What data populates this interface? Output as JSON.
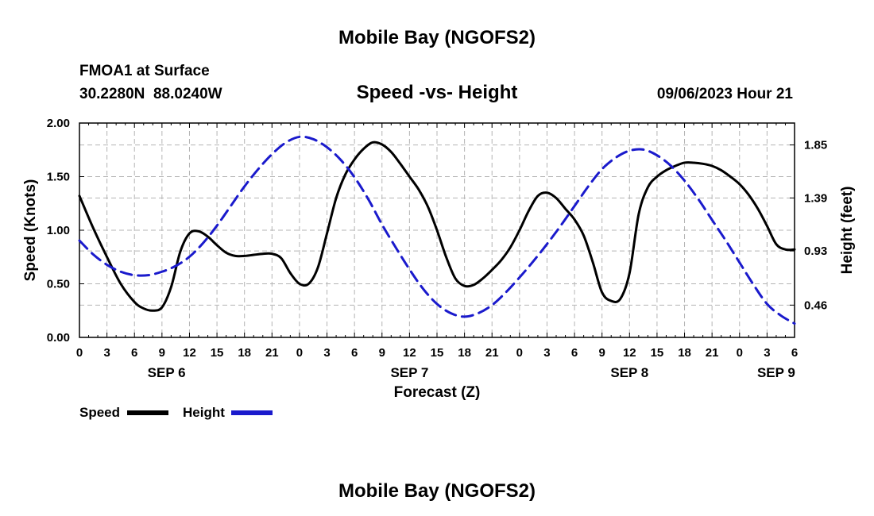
{
  "header": {
    "title": "Mobile Bay (NGOFS2)",
    "station_name": "FMOA1 at Surface",
    "station_coords": "30.2280N  88.0240W",
    "subtitle": "Speed -vs- Height",
    "timestamp": "09/06/2023 Hour 21"
  },
  "footer": {
    "title": "Mobile Bay (NGOFS2)"
  },
  "legend": {
    "items": [
      {
        "label": "Speed",
        "color": "#000000",
        "style": "solid"
      },
      {
        "label": "Height",
        "color": "#1a1acc",
        "style": "dashed"
      }
    ]
  },
  "chart_data": {
    "type": "line",
    "title": "Speed -vs- Height",
    "xlabel": "Forecast (Z)",
    "ylabel": "Speed (Knots)",
    "y2label": "Height (feet)",
    "x_unit": "forecast hour (Z) from Sep 6 00Z",
    "xlim": [
      0,
      78
    ],
    "ylim": [
      0,
      2.0
    ],
    "y2lim": [
      0.18,
      2.04
    ],
    "x_tick_values": [
      0,
      3,
      6,
      9,
      12,
      15,
      18,
      21,
      24,
      27,
      30,
      33,
      36,
      39,
      42,
      45,
      48,
      51,
      54,
      57,
      60,
      63,
      66,
      69,
      72,
      75,
      78
    ],
    "x_tick_labels": [
      "0",
      "3",
      "6",
      "9",
      "12",
      "15",
      "18",
      "21",
      "0",
      "3",
      "6",
      "9",
      "12",
      "15",
      "18",
      "21",
      "0",
      "3",
      "6",
      "9",
      "12",
      "15",
      "18",
      "21",
      "0",
      "3",
      "6"
    ],
    "y_ticks": [
      0.0,
      0.5,
      1.0,
      1.5,
      2.0
    ],
    "y_tick_labels": [
      "0.00",
      "0.50",
      "1.00",
      "1.50",
      "2.00"
    ],
    "y2_ticks": [
      0.46,
      0.93,
      1.39,
      1.85
    ],
    "y2_tick_labels": [
      "0.46",
      "0.93",
      "1.39",
      "1.85"
    ],
    "date_labels": [
      {
        "label": "SEP 6",
        "x": 9.5
      },
      {
        "label": "SEP 7",
        "x": 36
      },
      {
        "label": "SEP 8",
        "x": 60
      },
      {
        "label": "SEP 9",
        "x": 76
      }
    ],
    "grid": true,
    "legend_position": "bottom-left",
    "series": [
      {
        "name": "Speed",
        "axis": "left",
        "color": "#000000",
        "x": [
          0,
          1.5,
          3,
          4.5,
          6,
          7,
          8,
          9,
          10,
          11,
          12,
          13,
          14,
          15,
          16,
          17,
          18,
          19,
          20,
          21,
          22,
          23,
          24,
          25,
          26,
          27,
          28,
          29,
          30,
          31,
          32,
          33,
          34,
          35,
          36,
          37,
          38,
          39,
          40,
          41,
          42,
          43,
          44,
          45,
          46,
          47,
          48,
          49,
          50,
          51,
          52,
          53,
          54,
          55,
          56,
          57,
          58,
          59,
          60,
          61,
          62,
          63,
          64,
          65,
          66,
          67,
          68,
          69,
          70,
          71,
          72,
          73,
          74,
          75,
          76,
          77,
          78
        ],
        "values": [
          1.32,
          1.02,
          0.75,
          0.5,
          0.33,
          0.27,
          0.25,
          0.28,
          0.47,
          0.8,
          0.97,
          0.99,
          0.94,
          0.86,
          0.79,
          0.76,
          0.76,
          0.77,
          0.78,
          0.78,
          0.74,
          0.6,
          0.5,
          0.5,
          0.65,
          0.97,
          1.3,
          1.52,
          1.66,
          1.76,
          1.82,
          1.8,
          1.73,
          1.62,
          1.5,
          1.38,
          1.22,
          1.0,
          0.75,
          0.55,
          0.48,
          0.49,
          0.55,
          0.63,
          0.72,
          0.84,
          1.0,
          1.18,
          1.32,
          1.35,
          1.3,
          1.2,
          1.1,
          0.95,
          0.7,
          0.42,
          0.34,
          0.36,
          0.6,
          1.15,
          1.4,
          1.5,
          1.56,
          1.6,
          1.63,
          1.63,
          1.62,
          1.6,
          1.56,
          1.5,
          1.43,
          1.33,
          1.2,
          1.04,
          0.87,
          0.82,
          0.82
        ]
      },
      {
        "name": "Height",
        "axis": "right",
        "color": "#1a1acc",
        "x": [
          0,
          1.5,
          3,
          4.5,
          6,
          7.5,
          9,
          10.5,
          12,
          13.5,
          15,
          16.5,
          18,
          19.5,
          21,
          22.5,
          24,
          25.5,
          27,
          28.5,
          30,
          31.5,
          33,
          34.5,
          36,
          37.5,
          39,
          40.5,
          42,
          43.5,
          45,
          46.5,
          48,
          49.5,
          51,
          52.5,
          54,
          55.5,
          57,
          58.5,
          60,
          61.5,
          63,
          64.5,
          66,
          67.5,
          69,
          70.5,
          72,
          73.5,
          75,
          76.5,
          78
        ],
        "values": [
          1.02,
          0.9,
          0.81,
          0.75,
          0.72,
          0.72,
          0.75,
          0.8,
          0.88,
          1.0,
          1.15,
          1.32,
          1.49,
          1.64,
          1.77,
          1.87,
          1.92,
          1.9,
          1.83,
          1.72,
          1.57,
          1.38,
          1.16,
          0.96,
          0.77,
          0.6,
          0.47,
          0.39,
          0.36,
          0.39,
          0.46,
          0.57,
          0.7,
          0.84,
          0.99,
          1.15,
          1.32,
          1.49,
          1.64,
          1.74,
          1.8,
          1.81,
          1.76,
          1.67,
          1.54,
          1.38,
          1.2,
          1.02,
          0.83,
          0.64,
          0.47,
          0.37,
          0.3
        ]
      }
    ]
  }
}
